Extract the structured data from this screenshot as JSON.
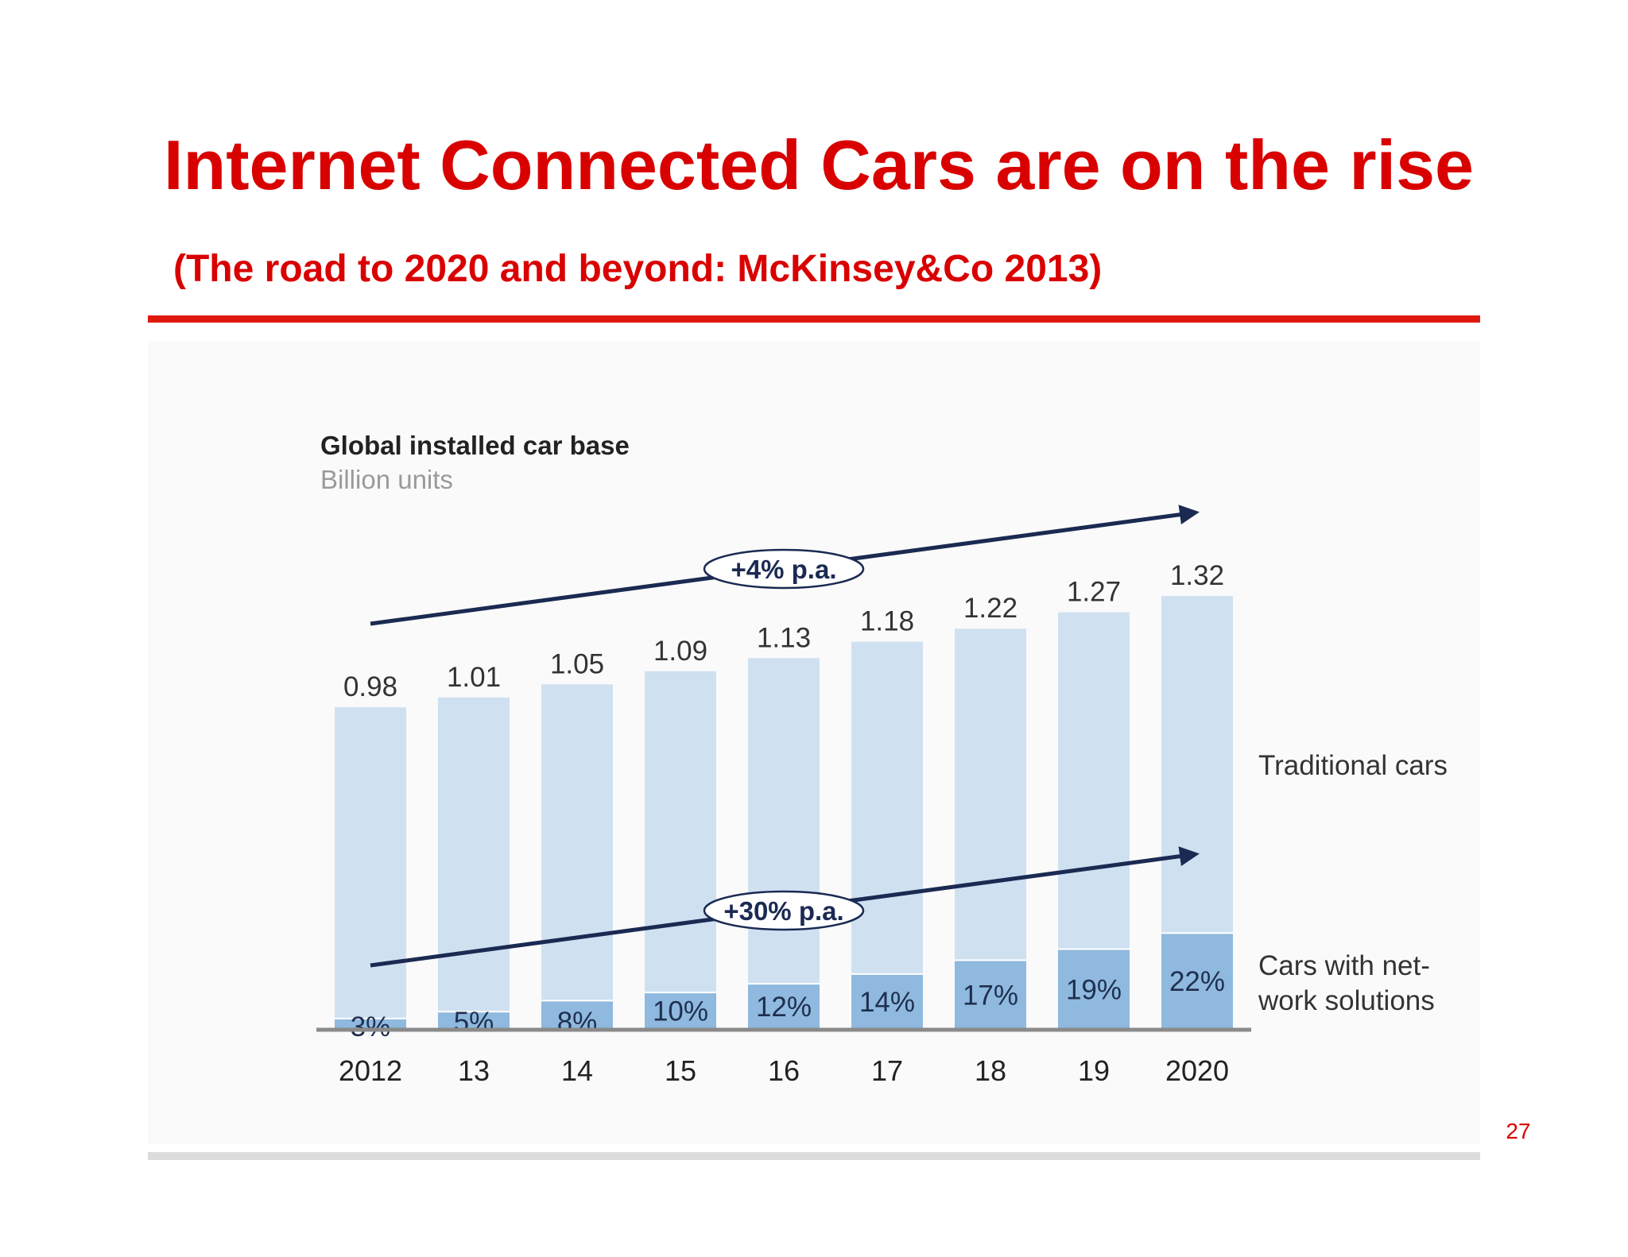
{
  "slide": {
    "title": "Internet Connected Cars are on the rise",
    "subtitle": "(The road to 2020 and beyond: McKinsey&Co 2013)",
    "page_number": "27"
  },
  "colors": {
    "title": "#d90000",
    "rule": "#e0190e",
    "traditional_bar": "#cfe1f1",
    "network_bar": "#8fb9de",
    "arrow": "#1b2a52",
    "axis": "#8a8a8a"
  },
  "chart_data": {
    "type": "bar",
    "stacked": true,
    "title": "Global installed car base",
    "subtitle": "Billion units",
    "categories": [
      "2012",
      "13",
      "14",
      "15",
      "16",
      "17",
      "18",
      "19",
      "2020"
    ],
    "totals": [
      0.98,
      1.01,
      1.05,
      1.09,
      1.13,
      1.18,
      1.22,
      1.27,
      1.32
    ],
    "total_labels": [
      "0.98",
      "1.01",
      "1.05",
      "1.09",
      "1.13",
      "1.18",
      "1.22",
      "1.27",
      "1.32"
    ],
    "network_share_pct": [
      3,
      5,
      8,
      10,
      12,
      14,
      17,
      19,
      22
    ],
    "network_share_labels": [
      "3%",
      "5%",
      "8%",
      "10%",
      "12%",
      "14%",
      "17%",
      "19%",
      "22%"
    ],
    "series": [
      {
        "name": "Traditional cars",
        "color": "#cfe1f1"
      },
      {
        "name": "Cars with net-work solutions",
        "legend_lines": [
          "Cars with net-",
          "work solutions"
        ],
        "color": "#8fb9de"
      }
    ],
    "annotations": {
      "total_growth": "+4% p.a.",
      "network_growth": "+30% p.a."
    },
    "ylim": [
      0,
      1.32
    ],
    "grid": false,
    "legend_placement": "right"
  }
}
